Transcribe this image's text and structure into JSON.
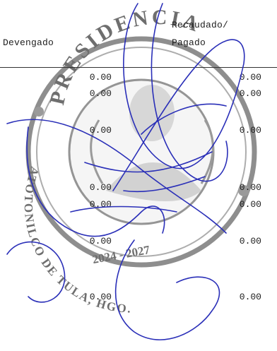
{
  "header": {
    "col_devengado": "Devengado",
    "col_recaudado_line1": "Recaudado/",
    "col_recaudado_line2": "Pagado"
  },
  "rows": [
    {
      "devengado": "0.00",
      "recaudado": "0.00"
    },
    {
      "devengado": "0.00",
      "recaudado": "0.00"
    },
    {
      "devengado": "0.00",
      "recaudado": "0.00"
    },
    {
      "devengado": "0.00",
      "recaudado": "0.00"
    },
    {
      "devengado": "0.00",
      "recaudado": "0.00"
    },
    {
      "devengado": "0.00",
      "recaudado": "0.00"
    },
    {
      "devengado": "0.00",
      "recaudado": "0.00"
    }
  ],
  "seal": {
    "top_text": "PRESIDENCIA",
    "bottom_text": "ATOTONILCO DE TULA, HGO.",
    "years": "2024 - 2027"
  },
  "colors": {
    "ink": "#1e1e1e",
    "seal": "#6b6b6b",
    "signature": "#2a2fb8"
  }
}
